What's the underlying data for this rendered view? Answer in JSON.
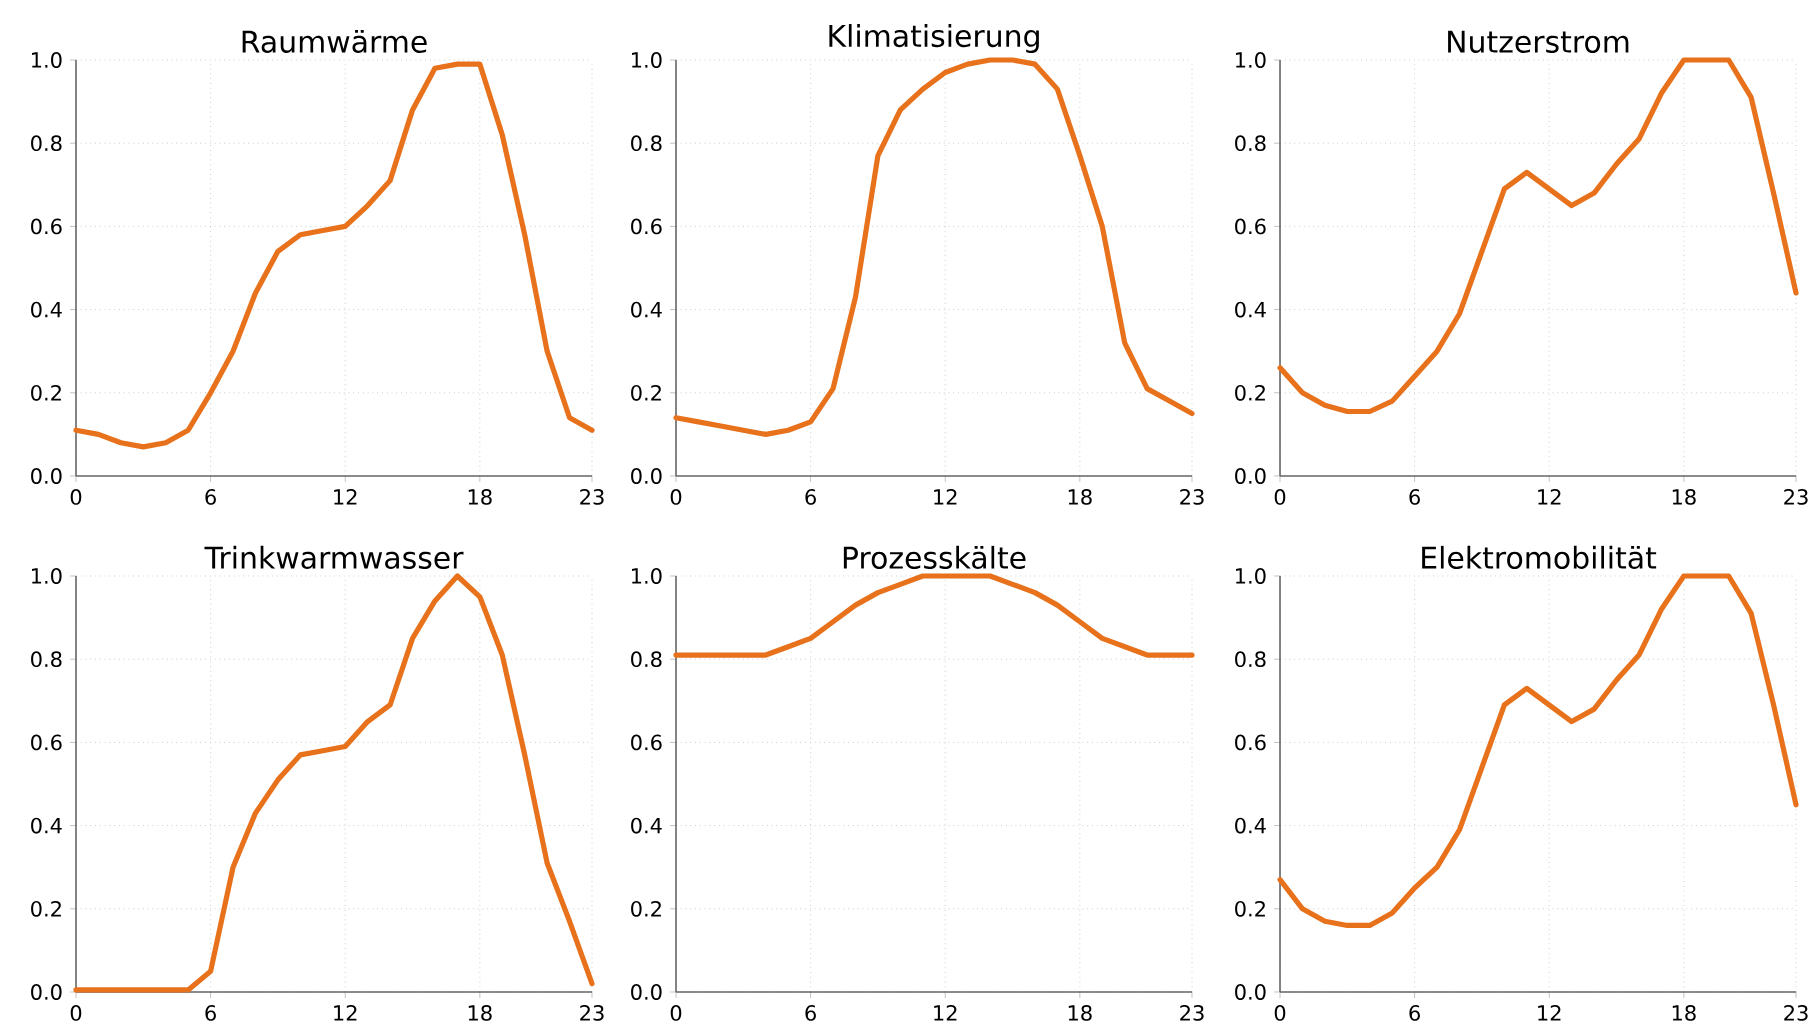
{
  "chart_data": [
    {
      "type": "line",
      "title": "Raumwärme",
      "x": [
        0,
        1,
        2,
        3,
        4,
        5,
        6,
        7,
        8,
        9,
        10,
        11,
        12,
        13,
        14,
        15,
        16,
        17,
        18,
        19,
        20,
        21,
        22,
        23
      ],
      "series": [
        {
          "color": "#e8711c",
          "values": [
            0.11,
            0.1,
            0.08,
            0.07,
            0.08,
            0.11,
            0.2,
            0.3,
            0.44,
            0.54,
            0.58,
            0.59,
            0.6,
            0.65,
            0.71,
            0.88,
            0.98,
            0.99,
            0.99,
            0.82,
            0.58,
            0.3,
            0.14,
            0.11
          ]
        }
      ],
      "xlim": [
        0,
        23
      ],
      "ylim": [
        0,
        1
      ],
      "xticks": [
        0,
        6,
        12,
        18,
        23
      ],
      "yticks": [
        {
          "value": 0,
          "label": "0.0"
        },
        {
          "value": 0.2,
          "label": "0.2"
        },
        {
          "value": 0.4,
          "label": "0.4"
        },
        {
          "value": 0.6,
          "label": "0.6"
        },
        {
          "value": 0.8,
          "label": "0.8"
        },
        {
          "value": 1,
          "label": "1.0"
        }
      ],
      "grid": true,
      "marker": "none",
      "line_style": "solid"
    },
    {
      "type": "line",
      "title": "Klimatisierung",
      "x": [
        0,
        1,
        2,
        3,
        4,
        5,
        6,
        7,
        8,
        9,
        10,
        11,
        12,
        13,
        14,
        15,
        16,
        17,
        18,
        19,
        20,
        21,
        22,
        23
      ],
      "series": [
        {
          "color": "#e8711c",
          "values": [
            0.14,
            0.13,
            0.12,
            0.11,
            0.1,
            0.11,
            0.13,
            0.21,
            0.43,
            0.77,
            0.88,
            0.93,
            0.97,
            0.99,
            1.0,
            1.0,
            0.99,
            0.93,
            0.77,
            0.6,
            0.32,
            0.21,
            0.18,
            0.15
          ]
        }
      ],
      "xlim": [
        0,
        23
      ],
      "ylim": [
        0,
        1
      ],
      "xticks": [
        0,
        6,
        12,
        18,
        23
      ],
      "yticks": [
        {
          "value": 0,
          "label": "0.0"
        },
        {
          "value": 0.2,
          "label": "0.2"
        },
        {
          "value": 0.4,
          "label": "0.4"
        },
        {
          "value": 0.6,
          "label": "0.6"
        },
        {
          "value": 0.8,
          "label": "0.8"
        },
        {
          "value": 1,
          "label": "1.0"
        }
      ],
      "grid": true,
      "marker": "none",
      "line_style": "solid"
    },
    {
      "type": "line",
      "title": "Nutzerstrom",
      "x": [
        0,
        1,
        2,
        3,
        4,
        5,
        6,
        7,
        8,
        9,
        10,
        11,
        12,
        13,
        14,
        15,
        16,
        17,
        18,
        19,
        20,
        21,
        22,
        23
      ],
      "series": [
        {
          "color": "#e8711c",
          "values": [
            0.26,
            0.2,
            0.17,
            0.155,
            0.155,
            0.18,
            0.24,
            0.3,
            0.39,
            0.54,
            0.69,
            0.73,
            0.69,
            0.65,
            0.68,
            0.75,
            0.81,
            0.92,
            1.0,
            1.0,
            1.0,
            0.91,
            0.68,
            0.44
          ]
        }
      ],
      "xlim": [
        0,
        23
      ],
      "ylim": [
        0,
        1
      ],
      "xticks": [
        0,
        6,
        12,
        18,
        23
      ],
      "yticks": [
        {
          "value": 0,
          "label": "0.0"
        },
        {
          "value": 0.2,
          "label": "0.2"
        },
        {
          "value": 0.4,
          "label": "0.4"
        },
        {
          "value": 0.6,
          "label": "0.6"
        },
        {
          "value": 0.8,
          "label": "0.8"
        },
        {
          "value": 1,
          "label": "1.0"
        }
      ],
      "grid": true,
      "marker": "none",
      "line_style": "solid"
    },
    {
      "type": "line",
      "title": "Trinkwarmwasser",
      "x": [
        0,
        1,
        2,
        3,
        4,
        5,
        6,
        7,
        8,
        9,
        10,
        11,
        12,
        13,
        14,
        15,
        16,
        17,
        18,
        19,
        20,
        21,
        22,
        23
      ],
      "series": [
        {
          "color": "#e8711c",
          "values": [
            0.005,
            0.005,
            0.005,
            0.005,
            0.005,
            0.005,
            0.05,
            0.3,
            0.43,
            0.51,
            0.57,
            0.58,
            0.59,
            0.65,
            0.69,
            0.85,
            0.94,
            1.0,
            0.95,
            0.81,
            0.57,
            0.31,
            0.17,
            0.02
          ]
        }
      ],
      "xlim": [
        0,
        23
      ],
      "ylim": [
        0,
        1
      ],
      "xticks": [
        0,
        6,
        12,
        18,
        23
      ],
      "yticks": [
        {
          "value": 0,
          "label": "0.0"
        },
        {
          "value": 0.2,
          "label": "0.2"
        },
        {
          "value": 0.4,
          "label": "0.4"
        },
        {
          "value": 0.6,
          "label": "0.6"
        },
        {
          "value": 0.8,
          "label": "0.8"
        },
        {
          "value": 1,
          "label": "1.0"
        }
      ],
      "grid": true,
      "marker": "none",
      "line_style": "solid"
    },
    {
      "type": "line",
      "title": "Prozesskälte",
      "x": [
        0,
        1,
        2,
        3,
        4,
        5,
        6,
        7,
        8,
        9,
        10,
        11,
        12,
        13,
        14,
        15,
        16,
        17,
        18,
        19,
        20,
        21,
        22,
        23
      ],
      "series": [
        {
          "color": "#e8711c",
          "values": [
            0.81,
            0.81,
            0.81,
            0.81,
            0.81,
            0.83,
            0.85,
            0.89,
            0.93,
            0.96,
            0.98,
            1.0,
            1.0,
            1.0,
            1.0,
            0.98,
            0.96,
            0.93,
            0.89,
            0.85,
            0.83,
            0.81,
            0.81,
            0.81
          ]
        }
      ],
      "xlim": [
        0,
        23
      ],
      "ylim": [
        0,
        1
      ],
      "xticks": [
        0,
        6,
        12,
        18,
        23
      ],
      "yticks": [
        {
          "value": 0,
          "label": "0.0"
        },
        {
          "value": 0.2,
          "label": "0.2"
        },
        {
          "value": 0.4,
          "label": "0.4"
        },
        {
          "value": 0.6,
          "label": "0.6"
        },
        {
          "value": 0.8,
          "label": "0.8"
        },
        {
          "value": 1,
          "label": "1.0"
        }
      ],
      "grid": true,
      "marker": "none",
      "line_style": "solid"
    },
    {
      "type": "line",
      "title": "Elektromobilität",
      "x": [
        0,
        1,
        2,
        3,
        4,
        5,
        6,
        7,
        8,
        9,
        10,
        11,
        12,
        13,
        14,
        15,
        16,
        17,
        18,
        19,
        20,
        21,
        22,
        23
      ],
      "series": [
        {
          "color": "#e8711c",
          "values": [
            0.27,
            0.2,
            0.17,
            0.16,
            0.16,
            0.19,
            0.25,
            0.3,
            0.39,
            0.54,
            0.69,
            0.73,
            0.69,
            0.65,
            0.68,
            0.75,
            0.81,
            0.92,
            1.0,
            1.0,
            1.0,
            0.91,
            0.69,
            0.45
          ]
        }
      ],
      "xlim": [
        0,
        23
      ],
      "ylim": [
        0,
        1
      ],
      "xticks": [
        0,
        6,
        12,
        18,
        23
      ],
      "yticks": [
        {
          "value": 0,
          "label": "0.0"
        },
        {
          "value": 0.2,
          "label": "0.2"
        },
        {
          "value": 0.4,
          "label": "0.4"
        },
        {
          "value": 0.6,
          "label": "0.6"
        },
        {
          "value": 0.8,
          "label": "0.8"
        },
        {
          "value": 1,
          "label": "1.0"
        }
      ],
      "grid": true,
      "marker": "none",
      "line_style": "solid"
    }
  ]
}
